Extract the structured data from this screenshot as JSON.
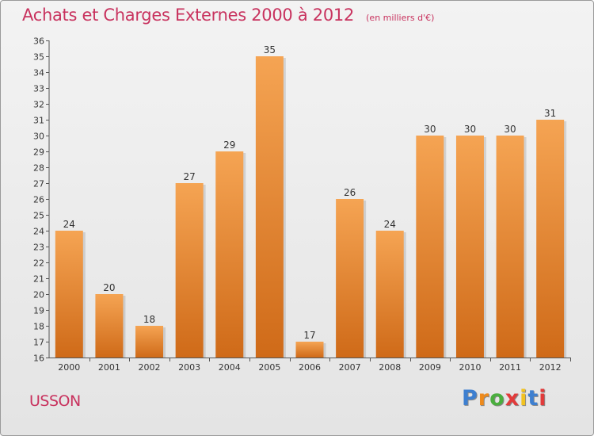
{
  "header": {
    "title": "Achats et Charges Externes 2000 à 2012",
    "subtitle": "(en milliers d'€)"
  },
  "footer": {
    "city": "USSON",
    "logo_text": "Proxiti"
  },
  "colors": {
    "title": "#c8325e",
    "bar_top": "#f5a453",
    "bar_bottom": "#cf6a18",
    "logo_letters": [
      "#3d7fd0",
      "#ee8a1c",
      "#4aae3e",
      "#e23b3b",
      "#f2c220",
      "#3d7fd0",
      "#e23b3b"
    ]
  },
  "chart_data": {
    "type": "bar",
    "title": "Achats et Charges Externes 2000 à 2012",
    "subtitle": "(en milliers d'€)",
    "categories": [
      "2000",
      "2001",
      "2002",
      "2003",
      "2004",
      "2005",
      "2006",
      "2007",
      "2008",
      "2009",
      "2010",
      "2011",
      "2012"
    ],
    "values": [
      24,
      20,
      18,
      27,
      29,
      35,
      17,
      26,
      24,
      30,
      30,
      30,
      31
    ],
    "xlabel": "",
    "ylabel": "",
    "ylim": [
      16,
      36
    ],
    "ytick_step": 1,
    "grid": false,
    "data_labels": true
  }
}
